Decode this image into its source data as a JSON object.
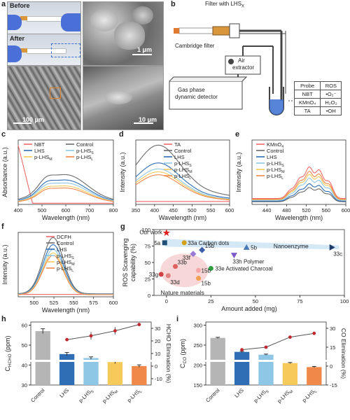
{
  "panels": {
    "a": "a",
    "b": "b",
    "c": "c",
    "d": "d",
    "e": "e",
    "f": "f",
    "g": "g",
    "h": "h",
    "i": "i"
  },
  "a": {
    "before": "Before",
    "after": "After",
    "scale1": "1 μm",
    "scale2": "100 μm",
    "scale3": "10 μm"
  },
  "b": {
    "filter": "Filter with LHS",
    "filter_sub": "X",
    "cambridge": "Cambridge filter",
    "air": "Air",
    "extractor": "extractor",
    "gas1": "Gas phase",
    "gas2": "dynamic detector",
    "table_header": [
      "Probe",
      "ROS"
    ],
    "table_rows": [
      [
        "NBT",
        "•O₂⁻"
      ],
      [
        "KMnO₄",
        "H₂O₂"
      ],
      [
        "TA",
        "•OH"
      ]
    ]
  },
  "colors": {
    "NBT": "#f26a6a",
    "Control": "#6b6b6b",
    "LHS": "#2f6eb5",
    "pS": "#8ec6e6",
    "pM": "#f5c95a",
    "pL": "#f0884a",
    "TA": "#f26a6a",
    "KMnO4": "#f26a6a",
    "DCFH": "#f26a6a"
  },
  "chart_data": [
    {
      "id": "c",
      "type": "line",
      "xlabel": "Wavelength (nm)",
      "ylabel": "Absorbance (a.u.)",
      "xlim": [
        400,
        800
      ],
      "xticks": [
        400,
        500,
        600,
        700,
        800
      ],
      "legend": [
        {
          "label": "NBT",
          "sub": "",
          "color": "#f26a6a"
        },
        {
          "label": "Control",
          "sub": "",
          "color": "#6b6b6b"
        },
        {
          "label": "LHS",
          "sub": "",
          "color": "#2f6eb5"
        },
        {
          "label": "p-LHS",
          "sub": "S",
          "color": "#8ec6e6"
        },
        {
          "label": "p-LHS",
          "sub": "M",
          "color": "#f5c95a"
        },
        {
          "label": "p-LHS",
          "sub": "L",
          "color": "#f0884a"
        }
      ]
    },
    {
      "id": "d",
      "type": "line",
      "xlabel": "Wavelength (nm)",
      "ylabel": "Intensity (a.u.)",
      "xlim": [
        350,
        600
      ],
      "xticks": [
        350,
        400,
        450,
        500,
        550,
        600
      ],
      "legend": [
        {
          "label": "TA",
          "sub": "",
          "color": "#f26a6a"
        },
        {
          "label": "Control",
          "sub": "",
          "color": "#6b6b6b"
        },
        {
          "label": "LHS",
          "sub": "",
          "color": "#2f6eb5"
        },
        {
          "label": "p-LHS",
          "sub": "S",
          "color": "#8ec6e6"
        },
        {
          "label": "p-LHS",
          "sub": "M",
          "color": "#f5c95a"
        },
        {
          "label": "p-LHS",
          "sub": "L",
          "color": "#f0884a"
        }
      ]
    },
    {
      "id": "e",
      "type": "line",
      "xlabel": "Wavelength (nm)",
      "ylabel": "Intensity (a.u.)",
      "xlim": [
        410,
        600
      ],
      "xticks": [
        440,
        480,
        520,
        560,
        600
      ],
      "legend": [
        {
          "label": "KMnO",
          "sub": "4",
          "color": "#f26a6a"
        },
        {
          "label": "Control",
          "sub": "",
          "color": "#6b6b6b"
        },
        {
          "label": "LHS",
          "sub": "",
          "color": "#2f6eb5"
        },
        {
          "label": "p-LHS",
          "sub": "S",
          "color": "#8ec6e6"
        },
        {
          "label": "p-LHS",
          "sub": "M",
          "color": "#f5c95a"
        },
        {
          "label": "p-LHS",
          "sub": "L",
          "color": "#f0884a"
        }
      ]
    },
    {
      "id": "f",
      "type": "line",
      "xlabel": "Wavelength (nm)",
      "ylabel": "Intensity (a.u.)",
      "xlim": [
        480,
        600
      ],
      "xticks": [
        500,
        525,
        550,
        575,
        600
      ],
      "legend": [
        {
          "label": "DCFH",
          "sub": "",
          "color": "#f26a6a"
        },
        {
          "label": "Control",
          "sub": "",
          "color": "#6b6b6b"
        },
        {
          "label": "LHS",
          "sub": "",
          "color": "#2f6eb5"
        },
        {
          "label": "p-LHS",
          "sub": "S",
          "color": "#8ec6e6"
        },
        {
          "label": "p-LHS",
          "sub": "M",
          "color": "#f5c95a"
        },
        {
          "label": "p-LHS",
          "sub": "L",
          "color": "#f0884a"
        }
      ]
    },
    {
      "id": "g",
      "type": "scatter",
      "xlabel": "Amount added (mg)",
      "ylabel": "ROS Scavenging capability (%)",
      "xlim": [
        -7,
        100
      ],
      "ylim": [
        0,
        100
      ],
      "xticks": [
        0,
        25,
        50,
        75,
        100
      ],
      "yticks": [
        0,
        25,
        50,
        75,
        100
      ],
      "points": [
        {
          "label": "Our work",
          "x": 0,
          "y": 95,
          "color": "#e02020",
          "shape": "star"
        },
        {
          "label": "5a",
          "x": -1,
          "y": 80,
          "color": "#1f4e79",
          "shape": "square"
        },
        {
          "label": "33a Carbon dots",
          "x": 10,
          "y": 80,
          "color": "#d4a017",
          "shape": "circle"
        },
        {
          "label": "5b",
          "x": 45,
          "y": 73,
          "color": "#4a7ab5",
          "shape": "triangle"
        },
        {
          "label": "33c",
          "x": 93,
          "y": 73,
          "color": "#1f3a6b",
          "shape": "tri-right"
        },
        {
          "label": "15b",
          "x": 20,
          "y": 69,
          "color": "#3b5fa8",
          "shape": "diamond"
        },
        {
          "label": "33f",
          "x": 15,
          "y": 63,
          "color": "#9a7bd5",
          "shape": "diamond"
        },
        {
          "label": "33h Polymer",
          "x": 38,
          "y": 61,
          "color": "#7d5bc8",
          "shape": "tri-down"
        },
        {
          "label": "33b",
          "x": 5,
          "y": 44,
          "color": "#e06060",
          "shape": "circle"
        },
        {
          "label": "33e Activated Charcoal",
          "x": 25,
          "y": 41,
          "color": "#2e9e3e",
          "shape": "circle"
        },
        {
          "label": "15b",
          "x": 18,
          "y": 38,
          "color": "#f4a6a6",
          "shape": "circle"
        },
        {
          "label": "33g",
          "x": -3,
          "y": 32,
          "color": "#d04040",
          "shape": "circle"
        },
        {
          "label": "33d",
          "x": 1,
          "y": 30,
          "color": "#e08080",
          "shape": "circle"
        },
        {
          "label": "15b",
          "x": 18,
          "y": 26,
          "color": "#f0a050",
          "shape": "circle"
        }
      ],
      "regions": {
        "nanozyme": "Nanoenzyme",
        "nature": "Nature materials"
      }
    },
    {
      "id": "h",
      "type": "bar",
      "ylabel": "C",
      "ylabel_sub": "HCHO",
      "ylabel_unit": " (ppm)",
      "y2label": "HCHO Elimination (%)",
      "categories": [
        {
          "label": "Control",
          "sub": ""
        },
        {
          "label": "LHS",
          "sub": ""
        },
        {
          "label": "p-LHS",
          "sub": "S"
        },
        {
          "label": "p-LHS",
          "sub": "M"
        },
        {
          "label": "p-LHS",
          "sub": "L"
        }
      ],
      "values": [
        57,
        45.5,
        43.5,
        41.5,
        39.5
      ],
      "errors": [
        1.2,
        0.8,
        0.6,
        0.8,
        0.6
      ],
      "bar_colors": [
        "#b5b5b5",
        "#2f6eb5",
        "#8ec6e6",
        "#f5c95a",
        "#f0884a"
      ],
      "line_values": [
        null,
        21,
        24,
        28,
        33
      ],
      "line_errors": [
        null,
        0,
        3,
        3,
        1
      ],
      "yticks": [
        30,
        40,
        50,
        60
      ],
      "yrange": [
        30,
        60
      ],
      "y2ticks": [
        -10,
        0,
        10,
        20,
        30
      ],
      "y2range": [
        -15,
        35
      ]
    },
    {
      "id": "i",
      "type": "bar",
      "ylabel": "C",
      "ylabel_sub": "CO",
      "ylabel_unit": " (ppm)",
      "y2label": "CO Elimination (%)",
      "categories": [
        {
          "label": "Control",
          "sub": ""
        },
        {
          "label": "LHS",
          "sub": ""
        },
        {
          "label": "p-LHS",
          "sub": "S"
        },
        {
          "label": "p-LHS",
          "sub": "M"
        },
        {
          "label": "p-LHS",
          "sub": "L"
        }
      ],
      "values": [
        268,
        233,
        226,
        205,
        195
      ],
      "errors": [
        1.5,
        1.5,
        1.5,
        1.5,
        1.5
      ],
      "bar_colors": [
        "#b5b5b5",
        "#2f6eb5",
        "#8ec6e6",
        "#f5c95a",
        "#f0884a"
      ],
      "line_values": [
        null,
        13,
        15,
        23,
        26
      ],
      "line_errors": [
        null,
        0,
        0,
        0,
        0
      ],
      "yticks": [
        150,
        200,
        250,
        300
      ],
      "yrange": [
        150,
        300
      ],
      "y2ticks": [
        -15,
        0,
        15,
        30
      ],
      "y2range": [
        -15,
        35
      ]
    }
  ]
}
